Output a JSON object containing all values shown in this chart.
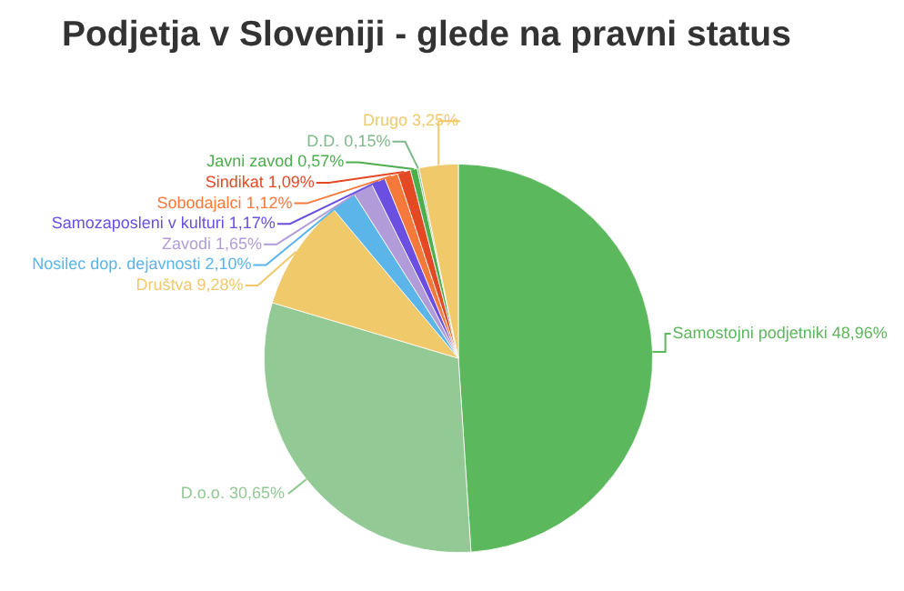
{
  "chart_data": {
    "type": "pie",
    "title": "Podjetja v Sloveniji - glede na pravni status",
    "categories": [
      "Samostojni podjetniki",
      "D.o.o.",
      "Društva",
      "Nosilec dop. dejavnosti",
      "Zavodi",
      "Samozaposleni v kulturi",
      "Sobodajalci",
      "Sindikat",
      "Javni zavod",
      "D.D.",
      "Drugo"
    ],
    "values": [
      48.96,
      30.65,
      9.28,
      2.1,
      1.65,
      1.17,
      1.12,
      1.09,
      0.57,
      0.15,
      3.25
    ],
    "value_labels": [
      "48,96%",
      "30,65%",
      "9,28%",
      "2,10%",
      "1,65%",
      "1,17%",
      "1,12%",
      "1,09%",
      "0,57%",
      "0,15%",
      "3,25%"
    ],
    "colors": [
      "#5cb85c",
      "#93c994",
      "#efc96a",
      "#5bb5e8",
      "#b19cd9",
      "#6b4fe0",
      "#f5793b",
      "#e34a24",
      "#4cae4c",
      "#7fb98a",
      "#f0c96a"
    ]
  }
}
